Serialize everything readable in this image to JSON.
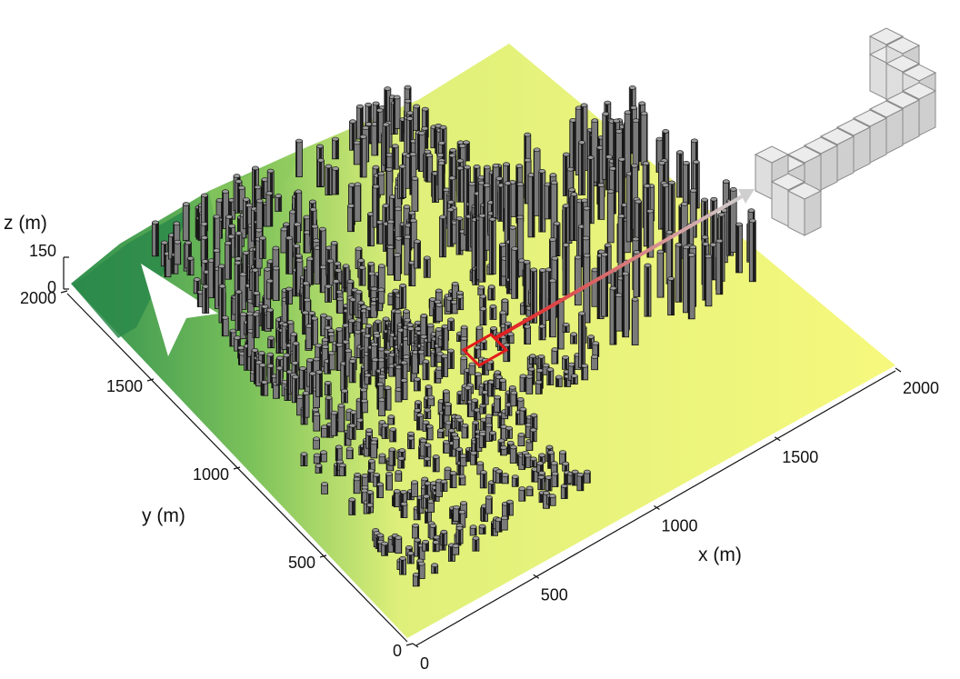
{
  "chart_data": {
    "type": "3d-surface",
    "title": "",
    "xlabel": "x (m)",
    "ylabel": "y (m)",
    "zlabel": "z (m)",
    "x_ticks": [
      0,
      500,
      1000,
      1500,
      2000
    ],
    "y_ticks": [
      0,
      500,
      1000,
      1500,
      2000
    ],
    "z_ticks": [
      0,
      150
    ],
    "xlim": [
      0,
      2000
    ],
    "ylim": [
      0,
      2000
    ],
    "zlim": [
      0,
      150
    ],
    "surface_colormap": [
      "#2f8f4f",
      "#7cc25a",
      "#c9e36e",
      "#f3f77a"
    ],
    "building_color": "#6e6e6e",
    "highlight_box_color": "#e31a1c",
    "arrow_gradient": [
      "#e31a1c",
      "#c8c8c8"
    ],
    "inset": "single building mesh (grey blocks)"
  }
}
